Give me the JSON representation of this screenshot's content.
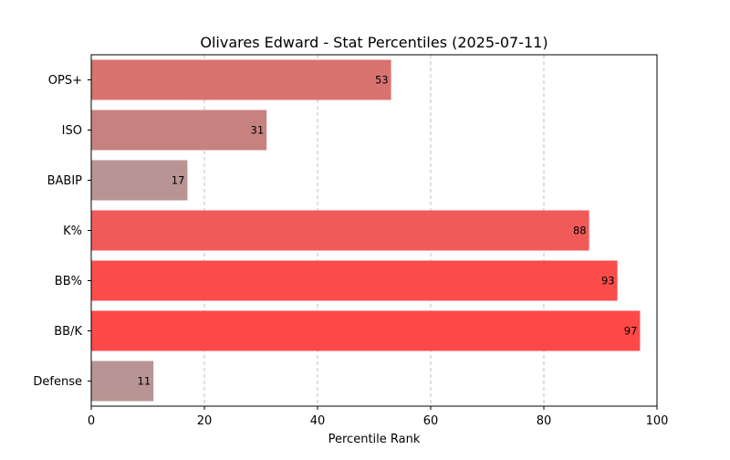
{
  "chart_data": {
    "type": "bar",
    "orientation": "horizontal",
    "title": "Olivares Edward - Stat Percentiles (2025-07-11)",
    "xlabel": "Percentile Rank",
    "ylabel": "",
    "xlim": [
      0,
      100
    ],
    "xticks": [
      0,
      20,
      40,
      60,
      80,
      100
    ],
    "grid": "x-dashed",
    "categories": [
      "OPS+",
      "ISO",
      "BABIP",
      "K%",
      "BB%",
      "BB/K",
      "Defense"
    ],
    "values": [
      53,
      31,
      17,
      88,
      93,
      97,
      11
    ],
    "bar_colors": [
      "#d97370",
      "#c78280",
      "#b89594",
      "#f05a59",
      "#fb4c4c",
      "#ff4949",
      "#b89594"
    ]
  }
}
